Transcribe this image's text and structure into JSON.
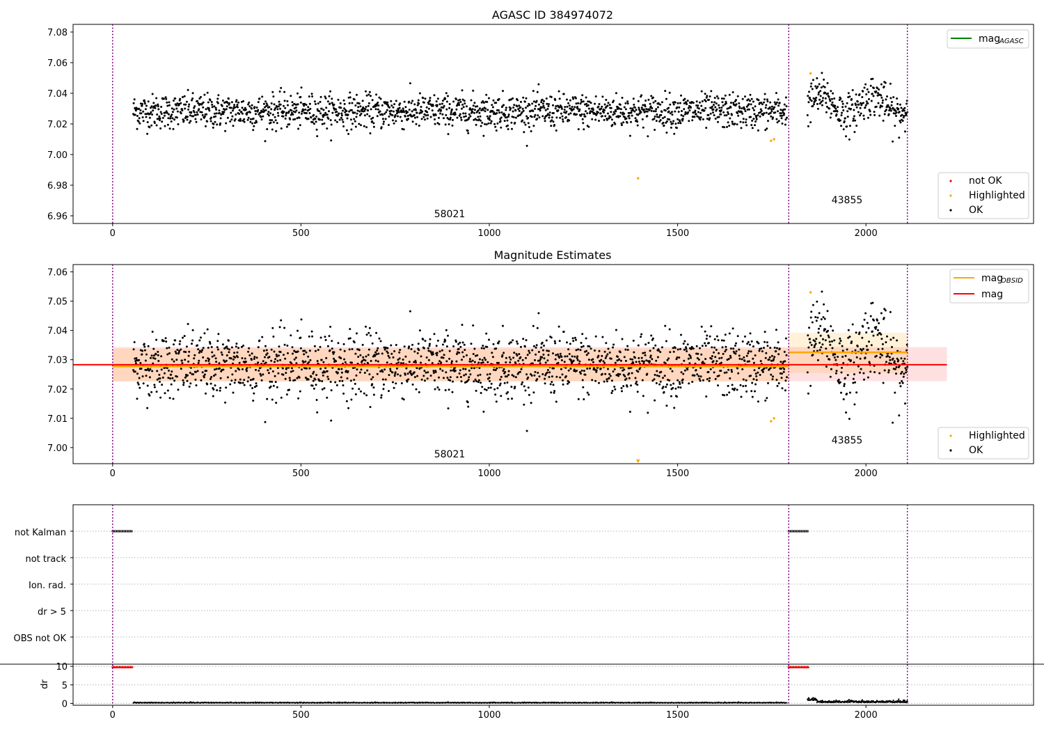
{
  "figure": {
    "panels": [
      {
        "title": "AGASC ID 384974072",
        "legend_lines": [
          {
            "label": "mag",
            "sub": "AGASC",
            "color": "#008000"
          }
        ],
        "legend_points": [
          {
            "label": "not OK",
            "color": "#ff0000"
          },
          {
            "label": "Highlighted",
            "color": "#ffa500"
          },
          {
            "label": "OK",
            "color": "#000000"
          }
        ]
      },
      {
        "title": "Magnitude Estimates",
        "legend_lines": [
          {
            "label": "mag",
            "sub": "OBSID",
            "color": "#ffa500"
          },
          {
            "label": "mag",
            "sub": "",
            "color": "#ff0000"
          }
        ],
        "legend_points": [
          {
            "label": "Highlighted",
            "color": "#ffa500"
          },
          {
            "label": "OK",
            "color": "#000000"
          }
        ]
      },
      {
        "title": "",
        "flag_labels": [
          "not Kalman",
          "not track",
          "Ion. rad.",
          "dr > 5",
          "OBS not OK"
        ],
        "dr_ylabel": "dr"
      }
    ],
    "obsid_labels": [
      {
        "text": "58021",
        "x": 900
      },
      {
        "text": "43855",
        "x": 1955
      }
    ],
    "obs_boundaries": [
      0,
      1795,
      2110
    ]
  },
  "chart_data": [
    {
      "type": "scatter",
      "title": "AGASC ID 384974072",
      "xlim": [
        -105,
        2445
      ],
      "ylim": [
        6.955,
        7.085
      ],
      "x_ticks": [
        0,
        500,
        1000,
        1500,
        2000
      ],
      "y_ticks": [
        6.96,
        6.98,
        7.0,
        7.02,
        7.04,
        7.06,
        7.08
      ],
      "y_tick_labels": [
        "6.96",
        "6.98",
        "7.00",
        "7.02",
        "7.04",
        "7.06",
        "7.08"
      ],
      "segments": [
        {
          "obsid": "58021",
          "x_start": 55,
          "x_end": 1790,
          "mean": 7.0282,
          "std": 0.0056
        },
        {
          "obsid": "43855",
          "x_start": 1845,
          "x_end": 2110,
          "mean": 7.0325,
          "std": 0.0065
        }
      ],
      "highlighted_points": [
        [
          1395,
          6.9845
        ],
        [
          1748,
          7.009
        ],
        [
          1756,
          7.01
        ],
        [
          1853,
          7.053
        ]
      ],
      "series": [
        {
          "name": "mag_AGASC",
          "kind": "line",
          "y": 7.04,
          "color": "#008000",
          "visible_in_plot": false
        }
      ]
    },
    {
      "type": "scatter",
      "title": "Magnitude Estimates",
      "xlim": [
        -105,
        2445
      ],
      "ylim": [
        6.9945,
        7.0625
      ],
      "x_ticks": [
        0,
        500,
        1000,
        1500,
        2000
      ],
      "y_ticks": [
        7.0,
        7.01,
        7.02,
        7.03,
        7.04,
        7.05,
        7.06
      ],
      "y_tick_labels": [
        "7.00",
        "7.01",
        "7.02",
        "7.03",
        "7.04",
        "7.05",
        "7.06"
      ],
      "series": [
        {
          "name": "mag_OBSID",
          "kind": "step",
          "color": "#ffa500",
          "steps": [
            {
              "x0": 0,
              "x1": 1795,
              "y": 7.0277,
              "band": [
                7.0225,
                7.0338
              ]
            },
            {
              "x0": 1795,
              "x1": 2110,
              "y": 7.0325,
              "band": [
                7.0255,
                7.0392
              ]
            }
          ]
        },
        {
          "name": "mag",
          "kind": "line",
          "color": "#ff0000",
          "x0": -105,
          "x1": 2215,
          "y": 7.0283,
          "band": [
            7.0227,
            7.0343
          ]
        }
      ]
    },
    {
      "type": "scatter",
      "title": "",
      "xlim": [
        -105,
        2445
      ],
      "categories": [
        "not Kalman",
        "not track",
        "Ion. rad.",
        "dr > 5",
        "OBS not OK"
      ],
      "not_kalman_ranges": [
        [
          0,
          52
        ],
        [
          1795,
          1848
        ]
      ],
      "dr": {
        "ylim": [
          -0.5,
          10.6
        ],
        "y_ticks": [
          0,
          5,
          10
        ],
        "y_tick_labels": [
          "0",
          "5",
          "10"
        ],
        "ylabel": "dr",
        "red_ranges": [
          [
            0,
            52
          ],
          [
            1795,
            1848
          ]
        ],
        "red_value": 9.8,
        "baseline_value": 0.1
      },
      "x_ticks": [
        0,
        500,
        1000,
        1500,
        2000
      ]
    }
  ]
}
